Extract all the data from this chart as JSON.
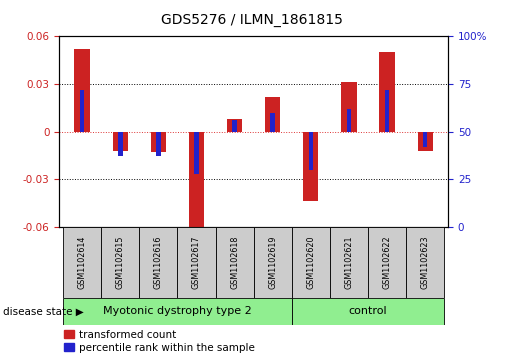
{
  "title": "GDS5276 / ILMN_1861815",
  "samples": [
    "GSM1102614",
    "GSM1102615",
    "GSM1102616",
    "GSM1102617",
    "GSM1102618",
    "GSM1102619",
    "GSM1102620",
    "GSM1102621",
    "GSM1102622",
    "GSM1102623"
  ],
  "red_values": [
    0.052,
    -0.012,
    -0.013,
    -0.068,
    0.008,
    0.022,
    -0.044,
    0.031,
    0.05,
    -0.012
  ],
  "blue_values": [
    0.72,
    0.37,
    0.37,
    0.28,
    0.56,
    0.6,
    0.3,
    0.62,
    0.72,
    0.42
  ],
  "ylim_left": [
    -0.06,
    0.06
  ],
  "ylim_right": [
    0,
    100
  ],
  "yticks_left": [
    -0.06,
    -0.03,
    0,
    0.03,
    0.06
  ],
  "yticks_right": [
    0,
    25,
    50,
    75,
    100
  ],
  "groups": [
    {
      "label": "Myotonic dystrophy type 2",
      "start": 0,
      "end": 5,
      "color": "#90EE90"
    },
    {
      "label": "control",
      "start": 6,
      "end": 9,
      "color": "#90EE90"
    }
  ],
  "disease_state_label": "disease state",
  "red_color": "#CC2222",
  "blue_color": "#2222CC",
  "legend_red": "transformed count",
  "legend_blue": "percentile rank within the sample",
  "bg_color": "#FFFFFF",
  "zero_line_color": "#DD3333",
  "box_color": "#CCCCCC",
  "bar_width": 0.4,
  "blue_bar_width": 0.12
}
